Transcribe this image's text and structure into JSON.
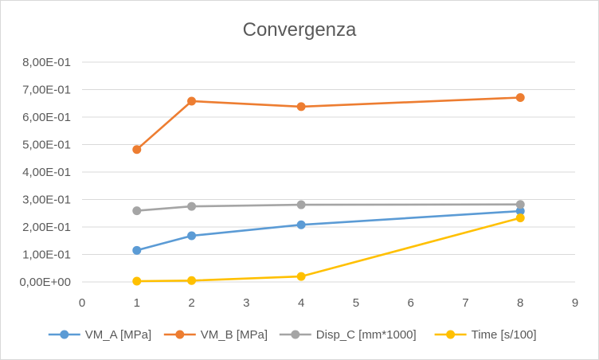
{
  "chart_data": {
    "type": "line",
    "title": "Convergenza",
    "xlabel": "",
    "ylabel": "",
    "xlim": [
      0,
      9
    ],
    "ylim": [
      0,
      0.8
    ],
    "x_ticks": [
      "0",
      "1",
      "2",
      "3",
      "4",
      "5",
      "6",
      "7",
      "8",
      "9"
    ],
    "y_ticks": [
      "0,00E+00",
      "1,00E-01",
      "2,00E-01",
      "3,00E-01",
      "4,00E-01",
      "5,00E-01",
      "6,00E-01",
      "7,00E-01",
      "8,00E-01"
    ],
    "grid": "horizontal",
    "legend_position": "bottom",
    "x": [
      1,
      2,
      4,
      8
    ],
    "series": [
      {
        "name": "VM_A [MPa]",
        "color": "#5B9BD5",
        "values": [
          0.115,
          0.168,
          0.208,
          0.258
        ]
      },
      {
        "name": "VM_B [MPa]",
        "color": "#ED7D31",
        "values": [
          0.482,
          0.658,
          0.638,
          0.671
        ]
      },
      {
        "name": "Disp_C [mm*1000]",
        "color": "#A5A5A5",
        "values": [
          0.259,
          0.275,
          0.281,
          0.282
        ]
      },
      {
        "name": "Time [s/100]",
        "color": "#FFC000",
        "values": [
          0.003,
          0.005,
          0.02,
          0.233
        ]
      }
    ]
  }
}
